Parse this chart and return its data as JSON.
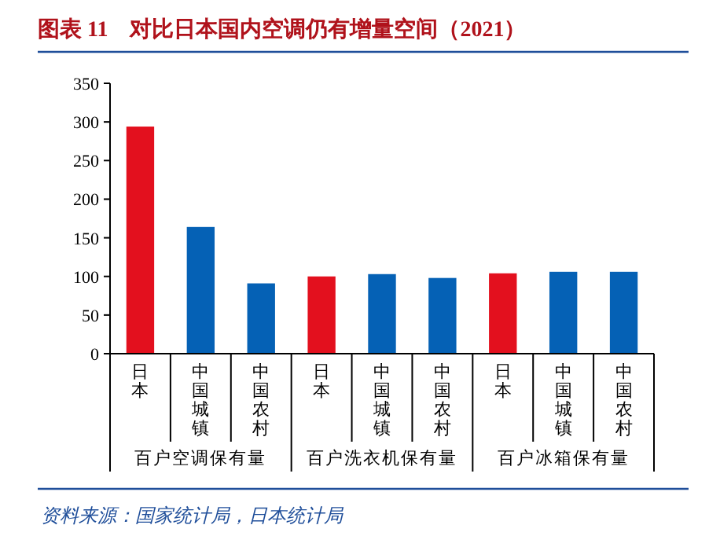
{
  "chart_data": {
    "type": "bar",
    "title": "图表 11　对比日本国内空调仍有增量空间（2021）",
    "categories": [
      "日本",
      "中国城镇",
      "中国农村",
      "日本",
      "中国城镇",
      "中国农村",
      "日本",
      "中国城镇",
      "中国农村"
    ],
    "values": [
      294,
      164,
      91,
      100,
      103,
      98,
      104,
      106,
      106
    ],
    "colors": [
      "#e3101e",
      "#0561b5",
      "#0561b5",
      "#e3101e",
      "#0561b5",
      "#0561b5",
      "#e3101e",
      "#0561b5",
      "#0561b5"
    ],
    "ylim": [
      0,
      350
    ],
    "yticks": [
      0,
      50,
      100,
      150,
      200,
      250,
      300,
      350
    ],
    "annotations": [
      "百户空调保有量",
      "百户洗衣机保有量",
      "百户冰箱保有量",
      "资料来源：国家统计局，日本统计局"
    ]
  }
}
